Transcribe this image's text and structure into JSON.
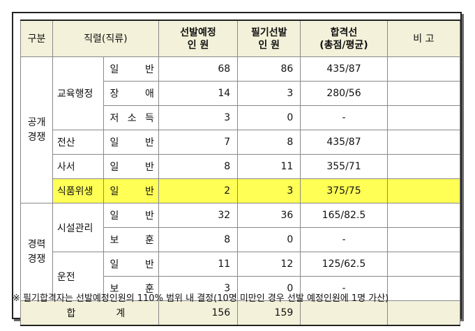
{
  "headers": {
    "division": "구분",
    "position": "직렬(직류)",
    "planned_line1": "선발예정",
    "planned_line2": "인  원",
    "passed_line1": "필기선발",
    "passed_line2": "인  원",
    "cutoff_line1": "합격선",
    "cutoff_line2": "(총점/평균)",
    "remarks": "비  고"
  },
  "sections": [
    {
      "line1": "공개",
      "line2": "경쟁"
    },
    {
      "line1": "경력",
      "line2": "경쟁"
    }
  ],
  "jobs": [
    "교육행정",
    "전산",
    "사서",
    "식품위생",
    "시설관리",
    "운전"
  ],
  "rows": [
    {
      "kind": [
        "일",
        "반"
      ],
      "planned": "68",
      "passed": "86",
      "cutoff": "435/87"
    },
    {
      "kind": [
        "장",
        "애"
      ],
      "planned": "14",
      "passed": "3",
      "cutoff": "280/56"
    },
    {
      "kind": [
        "저",
        "소",
        "득"
      ],
      "planned": "3",
      "passed": "0",
      "cutoff": "-"
    },
    {
      "kind": [
        "일",
        "반"
      ],
      "planned": "7",
      "passed": "8",
      "cutoff": "435/87"
    },
    {
      "kind": [
        "일",
        "반"
      ],
      "planned": "8",
      "passed": "11",
      "cutoff": "355/71"
    },
    {
      "kind": [
        "일",
        "반"
      ],
      "planned": "2",
      "passed": "3",
      "cutoff": "375/75"
    },
    {
      "kind": [
        "일",
        "반"
      ],
      "planned": "32",
      "passed": "36",
      "cutoff": "165/82.5"
    },
    {
      "kind": [
        "보",
        "훈"
      ],
      "planned": "8",
      "passed": "0",
      "cutoff": "-"
    },
    {
      "kind": [
        "일",
        "반"
      ],
      "planned": "11",
      "passed": "12",
      "cutoff": "125/62.5"
    },
    {
      "kind": [
        "보",
        "훈"
      ],
      "planned": "3",
      "passed": "0",
      "cutoff": "-"
    }
  ],
  "total": {
    "label": [
      "합",
      "계"
    ],
    "planned": "156",
    "passed": "159"
  },
  "note": "※ 필기합격자는 선발예정인원의 110% 범위 내 결정(10명 미만인 경우 선발 예정인원에 1명 가산)",
  "colors": {
    "header_bg": "#f3f1d9",
    "highlight": "#ffff55"
  }
}
